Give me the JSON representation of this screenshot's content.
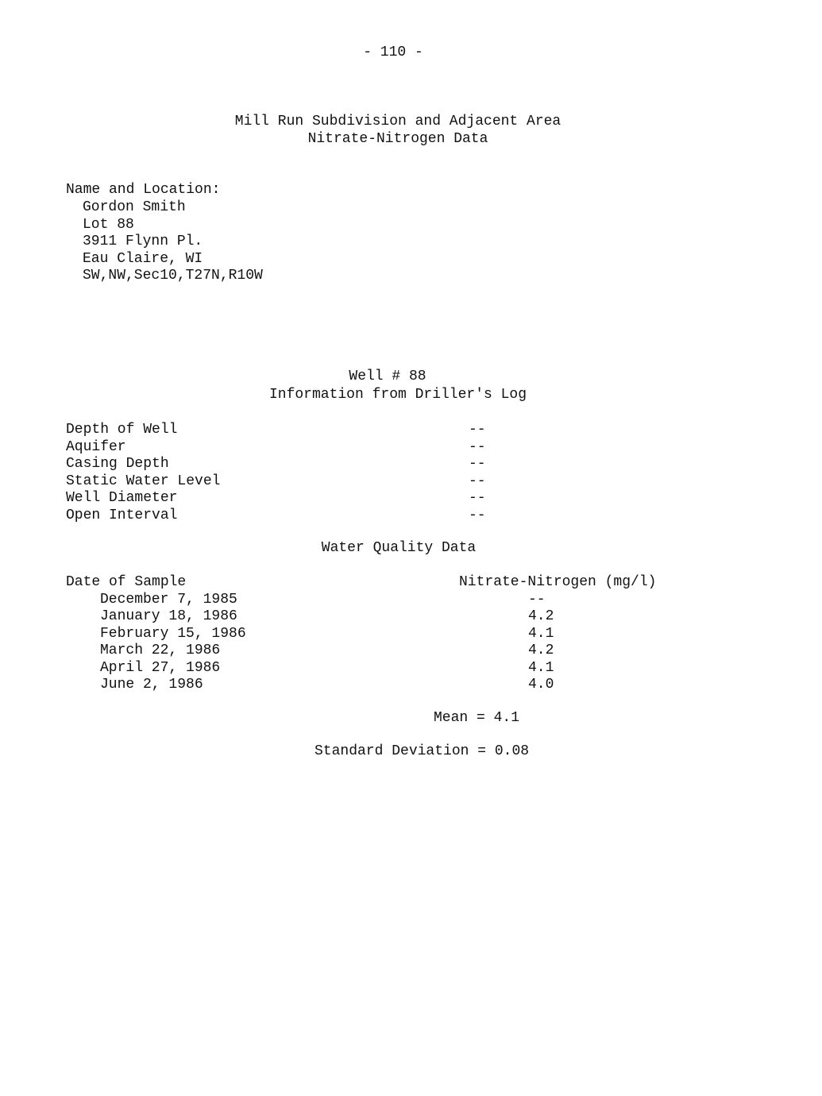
{
  "page_number": "- 110 -",
  "title": [
    "Mill Run Subdivision and Adjacent Area",
    "Nitrate-Nitrogen Data"
  ],
  "location": {
    "heading": "Name and Location:",
    "lines": [
      "Gordon Smith",
      "Lot 88",
      "3911 Flynn Pl.",
      "Eau Claire, WI",
      "SW,NW,Sec10,T27N,R10W"
    ]
  },
  "well": {
    "title": "Well # 88",
    "subtitle": "Information from Driller's Log",
    "rows": [
      {
        "label": "Depth of Well",
        "value": "--"
      },
      {
        "label": "Aquifer",
        "value": "--"
      },
      {
        "label": "Casing Depth",
        "value": "--"
      },
      {
        "label": "Static Water Level",
        "value": "--"
      },
      {
        "label": "Well Diameter",
        "value": "--"
      },
      {
        "label": "Open Interval",
        "value": "--"
      }
    ]
  },
  "water_quality": {
    "title": "Water Quality Data",
    "col_date": "Date of Sample",
    "col_value": "Nitrate-Nitrogen (mg/l)",
    "rows": [
      {
        "date": "December 7, 1985",
        "value": "--"
      },
      {
        "date": "January 18, 1986",
        "value": "4.2"
      },
      {
        "date": "February 15, 1986",
        "value": "4.1"
      },
      {
        "date": "March 22, 1986",
        "value": "4.2"
      },
      {
        "date": "April 27, 1986",
        "value": "4.1"
      },
      {
        "date": "June 2, 1986",
        "value": "4.0"
      }
    ],
    "mean": "Mean = 4.1",
    "std_dev": "Standard Deviation = 0.08"
  }
}
